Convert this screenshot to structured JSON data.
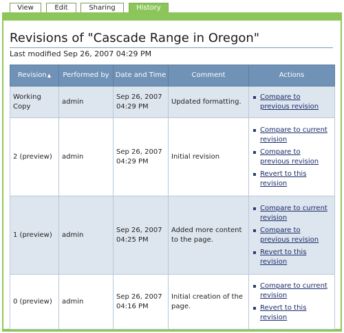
{
  "tabs": [
    {
      "label": "View",
      "active": false
    },
    {
      "label": "Edit",
      "active": false
    },
    {
      "label": "Sharing",
      "active": false
    },
    {
      "label": "History",
      "active": true
    }
  ],
  "page": {
    "title": "Revisions of \"Cascade Range in Oregon\"",
    "last_modified": "Last modified Sep 26, 2007 04:29 PM"
  },
  "table": {
    "headers": [
      "Revision",
      "Performed by",
      "Date and Time",
      "Comment",
      "Actions"
    ],
    "sort_indicator": "▲",
    "rows": [
      {
        "revision": "Working Copy",
        "by": "admin",
        "date": "Sep 26, 2007",
        "time": "04:29 PM",
        "comment": "Updated formatting.",
        "actions": [
          "Compare to previous revision"
        ]
      },
      {
        "revision": "2 (preview)",
        "by": "admin",
        "date": "Sep 26, 2007",
        "time": "04:29 PM",
        "comment": "Initial revision",
        "actions": [
          "Compare to current revision",
          "Compare to previous revision",
          "Revert to this revision"
        ]
      },
      {
        "revision": "1 (preview)",
        "by": "admin",
        "date": "Sep 26, 2007",
        "time": "04:25 PM",
        "comment": "Added more content to the page.",
        "actions": [
          "Compare to current revision",
          "Compare to previous revision",
          "Revert to this revision"
        ]
      },
      {
        "revision": "0 (preview)",
        "by": "admin",
        "date": "Sep 26, 2007",
        "time": "04:16 PM",
        "comment": "Initial creation of the page.",
        "actions": [
          "Compare to current revision",
          "Revert to this revision"
        ]
      }
    ]
  },
  "colors": {
    "accent": "#8cc65a",
    "header": "#6f92b6",
    "row_alt": "#dde6ee"
  }
}
